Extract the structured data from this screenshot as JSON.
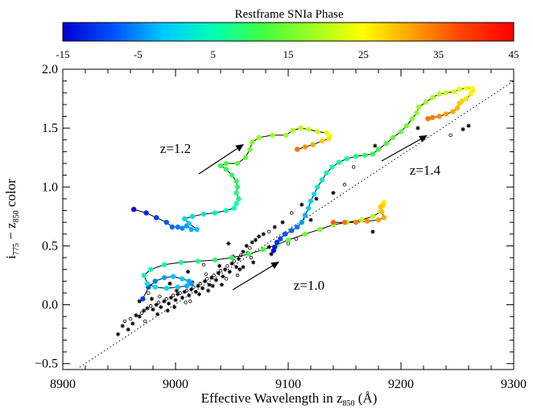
{
  "chart_data": {
    "type": "scatter",
    "title": "",
    "xlabel": "Effective Wavelength in z",
    "xlabel_sub": "850",
    "xlabel_suffix": " (Å)",
    "ylabel_main": "i",
    "ylabel_sub1": "775",
    "ylabel_mid": " − z",
    "ylabel_sub2": "850",
    "ylabel_suffix": " color",
    "xlim": [
      8900,
      9300
    ],
    "ylim": [
      -0.55,
      2.0
    ],
    "xticks": [
      "8900",
      "9000",
      "9100",
      "9200",
      "9300"
    ],
    "yticks": [
      "−0.5",
      "0.0",
      "0.5",
      "1.0",
      "1.5",
      "2.0"
    ],
    "colorbar": {
      "title": "Restframe SNIa Phase",
      "range": [
        -15,
        45
      ],
      "ticks": [
        "-15",
        "-5",
        "5",
        "15",
        "25",
        "35",
        "45"
      ],
      "colormap": [
        "#0000d0",
        "#0050ff",
        "#00c8ff",
        "#00ffb4",
        "#40ff40",
        "#a0ff20",
        "#ffff00",
        "#ffa000",
        "#ff4000",
        "#ff0000"
      ]
    },
    "reference_line": {
      "style": "dotted",
      "x": [
        8915,
        9300
      ],
      "y": [
        -0.53,
        1.9
      ]
    },
    "tracks": [
      {
        "annotation": "z=1.0",
        "points": [
          [
            8971,
            0.05,
            -10
          ],
          [
            8976,
            0.15,
            -8
          ],
          [
            8982,
            0.2,
            -6
          ],
          [
            8990,
            0.23,
            -4
          ],
          [
            8998,
            0.24,
            -2
          ],
          [
            9006,
            0.22,
            -1
          ],
          [
            9012,
            0.2,
            -3
          ],
          [
            9014,
            0.18,
            -4
          ],
          [
            9010,
            0.16,
            -3
          ],
          [
            9002,
            0.15,
            -1
          ],
          [
            8992,
            0.14,
            1
          ],
          [
            8982,
            0.15,
            2
          ],
          [
            8975,
            0.18,
            3
          ],
          [
            8972,
            0.25,
            4
          ],
          [
            8978,
            0.3,
            5
          ],
          [
            8990,
            0.34,
            6
          ],
          [
            9005,
            0.36,
            7
          ],
          [
            9020,
            0.37,
            8
          ],
          [
            9035,
            0.38,
            9
          ],
          [
            9050,
            0.4,
            10
          ],
          [
            9065,
            0.43,
            11
          ],
          [
            9078,
            0.47,
            12
          ],
          [
            9090,
            0.51,
            13
          ],
          [
            9100,
            0.55,
            14
          ],
          [
            9115,
            0.6,
            15
          ],
          [
            9128,
            0.64,
            16
          ],
          [
            9140,
            0.68,
            17
          ],
          [
            9152,
            0.7,
            18
          ],
          [
            9165,
            0.72,
            19
          ],
          [
            9175,
            0.75,
            20
          ],
          [
            9182,
            0.79,
            22
          ],
          [
            9184,
            0.84,
            24
          ],
          [
            9185,
            0.87,
            26
          ],
          [
            9184,
            0.85,
            28
          ],
          [
            9182,
            0.83,
            29
          ],
          [
            9183,
            0.79,
            30
          ],
          [
            9185,
            0.74,
            31
          ],
          [
            9180,
            0.72,
            32
          ],
          [
            9170,
            0.71,
            33
          ],
          [
            9160,
            0.7,
            34
          ],
          [
            9150,
            0.7,
            35
          ],
          [
            9140,
            0.7,
            36
          ]
        ]
      },
      {
        "annotation": "z=1.2",
        "points": [
          [
            8963,
            0.81,
            -14
          ],
          [
            8974,
            0.78,
            -12
          ],
          [
            8983,
            0.74,
            -10
          ],
          [
            8992,
            0.7,
            -8
          ],
          [
            8997,
            0.66,
            -7
          ],
          [
            9002,
            0.66,
            -6
          ],
          [
            9006,
            0.65,
            -5
          ],
          [
            9010,
            0.67,
            -4
          ],
          [
            9014,
            0.64,
            -3
          ],
          [
            9019,
            0.64,
            -2
          ],
          [
            9012,
            0.69,
            -1
          ],
          [
            9008,
            0.73,
            0
          ],
          [
            9015,
            0.75,
            1
          ],
          [
            9025,
            0.77,
            2
          ],
          [
            9035,
            0.78,
            3
          ],
          [
            9045,
            0.8,
            4
          ],
          [
            9052,
            0.82,
            5
          ],
          [
            9054,
            0.86,
            6
          ],
          [
            9056,
            0.9,
            7
          ],
          [
            9054,
            0.95,
            8
          ],
          [
            9055,
            1.0,
            9
          ],
          [
            9054,
            1.05,
            10
          ],
          [
            9050,
            1.1,
            10
          ],
          [
            9045,
            1.15,
            11
          ],
          [
            9040,
            1.18,
            11
          ],
          [
            9045,
            1.2,
            12
          ],
          [
            9055,
            1.2,
            13
          ],
          [
            9062,
            1.25,
            14
          ],
          [
            9066,
            1.32,
            15
          ],
          [
            9068,
            1.38,
            16
          ],
          [
            9074,
            1.42,
            17
          ],
          [
            9086,
            1.44,
            18
          ],
          [
            9098,
            1.44,
            18
          ],
          [
            9104,
            1.48,
            19
          ],
          [
            9111,
            1.5,
            20
          ],
          [
            9118,
            1.49,
            21
          ],
          [
            9126,
            1.47,
            22
          ],
          [
            9134,
            1.46,
            23
          ],
          [
            9137,
            1.43,
            25
          ],
          [
            9136,
            1.41,
            27
          ],
          [
            9130,
            1.39,
            29
          ],
          [
            9122,
            1.36,
            31
          ],
          [
            9115,
            1.34,
            33
          ],
          [
            9108,
            1.32,
            35
          ]
        ]
      },
      {
        "annotation": "z=1.4",
        "points": [
          [
            9087,
            0.46,
            -15
          ],
          [
            9088,
            0.49,
            -13
          ],
          [
            9090,
            0.53,
            -11
          ],
          [
            9093,
            0.56,
            -9
          ],
          [
            9097,
            0.6,
            -8
          ],
          [
            9103,
            0.63,
            -7
          ],
          [
            9108,
            0.66,
            -6
          ],
          [
            9112,
            0.7,
            -4
          ],
          [
            9115,
            0.76,
            -3
          ],
          [
            9118,
            0.82,
            -1
          ],
          [
            9120,
            0.88,
            0
          ],
          [
            9123,
            0.94,
            1
          ],
          [
            9126,
            1.0,
            2
          ],
          [
            9130,
            1.06,
            3
          ],
          [
            9134,
            1.12,
            4
          ],
          [
            9139,
            1.17,
            5
          ],
          [
            9145,
            1.21,
            6
          ],
          [
            9152,
            1.24,
            7
          ],
          [
            9160,
            1.26,
            8
          ],
          [
            9168,
            1.27,
            9
          ],
          [
            9175,
            1.28,
            10
          ],
          [
            9180,
            1.32,
            11
          ],
          [
            9187,
            1.37,
            12
          ],
          [
            9193,
            1.42,
            13
          ],
          [
            9200,
            1.47,
            14
          ],
          [
            9205,
            1.52,
            15
          ],
          [
            9210,
            1.58,
            16
          ],
          [
            9214,
            1.63,
            17
          ],
          [
            9216,
            1.68,
            18
          ],
          [
            9222,
            1.72,
            18
          ],
          [
            9228,
            1.76,
            19
          ],
          [
            9234,
            1.79,
            20
          ],
          [
            9240,
            1.8,
            21
          ],
          [
            9247,
            1.81,
            22
          ],
          [
            9252,
            1.83,
            23
          ],
          [
            9258,
            1.84,
            24
          ],
          [
            9263,
            1.84,
            25
          ],
          [
            9264,
            1.82,
            26
          ],
          [
            9262,
            1.79,
            26
          ],
          [
            9258,
            1.75,
            27
          ],
          [
            9254,
            1.73,
            28
          ],
          [
            9252,
            1.71,
            29
          ],
          [
            9250,
            1.67,
            30
          ],
          [
            9246,
            1.64,
            31
          ],
          [
            9240,
            1.62,
            32
          ],
          [
            9234,
            1.6,
            33
          ],
          [
            9228,
            1.59,
            34
          ],
          [
            9224,
            1.58,
            35
          ]
        ]
      }
    ],
    "observed_points": [
      [
        8953,
        -0.18
      ],
      [
        8960,
        -0.12
      ],
      [
        8965,
        -0.09
      ],
      [
        8968,
        -0.1
      ],
      [
        8970,
        -0.07
      ],
      [
        8972,
        -0.05
      ],
      [
        8975,
        -0.03
      ],
      [
        8978,
        -0.01
      ],
      [
        8980,
        -0.04
      ],
      [
        8983,
        0.0
      ],
      [
        8985,
        0.02
      ],
      [
        8987,
        -0.02
      ],
      [
        8990,
        0.03
      ],
      [
        8992,
        0.05
      ],
      [
        8994,
        0.01
      ],
      [
        8996,
        0.06
      ],
      [
        8998,
        0.08
      ],
      [
        9000,
        0.04
      ],
      [
        9002,
        0.09
      ],
      [
        9004,
        0.1
      ],
      [
        9006,
        0.06
      ],
      [
        9008,
        0.11
      ],
      [
        9010,
        0.12
      ],
      [
        9012,
        0.08
      ],
      [
        9014,
        0.13
      ],
      [
        9016,
        0.15
      ],
      [
        9018,
        0.11
      ],
      [
        9020,
        0.16
      ],
      [
        9022,
        0.18
      ],
      [
        9024,
        0.14
      ],
      [
        9026,
        0.2
      ],
      [
        9028,
        0.22
      ],
      [
        9030,
        0.17
      ],
      [
        9032,
        0.23
      ],
      [
        9034,
        0.25
      ],
      [
        9036,
        0.21
      ],
      [
        9038,
        0.27
      ],
      [
        9040,
        0.29
      ],
      [
        9042,
        0.24
      ],
      [
        9044,
        0.3
      ],
      [
        9046,
        0.33
      ],
      [
        9048,
        0.28
      ],
      [
        9050,
        0.35
      ],
      [
        9052,
        0.37
      ],
      [
        9054,
        0.32
      ],
      [
        9056,
        0.39
      ],
      [
        9058,
        0.42
      ],
      [
        9060,
        0.45
      ],
      [
        9063,
        0.5
      ],
      [
        9066,
        0.48
      ],
      [
        9068,
        0.53
      ],
      [
        9071,
        0.55
      ],
      [
        8955,
        -0.14
      ],
      [
        8962,
        -0.16
      ],
      [
        8979,
        0.05
      ],
      [
        8986,
        0.07
      ],
      [
        8993,
        -0.05
      ],
      [
        9001,
        0.12
      ],
      [
        9009,
        0.02
      ],
      [
        9015,
        0.19
      ],
      [
        9021,
        0.09
      ],
      [
        9027,
        0.26
      ],
      [
        9033,
        0.16
      ],
      [
        9039,
        0.33
      ],
      [
        9045,
        0.22
      ],
      [
        9051,
        0.41
      ],
      [
        9057,
        0.3
      ],
      [
        9064,
        0.44
      ],
      [
        9074,
        0.58
      ],
      [
        9078,
        0.6
      ],
      [
        9083,
        0.62
      ],
      [
        9088,
        0.66
      ],
      [
        9095,
        0.7
      ],
      [
        9103,
        0.78
      ],
      [
        9112,
        0.85
      ],
      [
        9125,
        0.9
      ],
      [
        9158,
        1.17
      ],
      [
        9177,
        1.35
      ],
      [
        9215,
        1.5
      ],
      [
        9244,
        1.44
      ],
      [
        9260,
        1.52
      ],
      [
        8968,
        0.03
      ],
      [
        8976,
        0.1
      ],
      [
        8995,
        0.18
      ],
      [
        9011,
        0.28
      ],
      [
        9025,
        0.34
      ],
      [
        9047,
        0.52
      ],
      [
        9060,
        0.32
      ],
      [
        9067,
        0.4
      ],
      [
        9083,
        0.49
      ],
      [
        9098,
        0.6
      ],
      [
        9107,
        0.56
      ],
      [
        8949,
        -0.25
      ],
      [
        8958,
        -0.21
      ],
      [
        8973,
        -0.14
      ],
      [
        8984,
        -0.08
      ],
      [
        8999,
        -0.02
      ],
      [
        9013,
        0.03
      ],
      [
        9029,
        0.12
      ],
      [
        9041,
        0.17
      ],
      [
        9055,
        0.25
      ],
      [
        9069,
        0.36
      ],
      [
        9085,
        0.43
      ],
      [
        9100,
        0.52
      ],
      [
        9120,
        0.72
      ],
      [
        9140,
        0.95
      ],
      [
        9150,
        1.02
      ],
      [
        9175,
        0.62
      ],
      [
        9255,
        1.49
      ]
    ]
  }
}
